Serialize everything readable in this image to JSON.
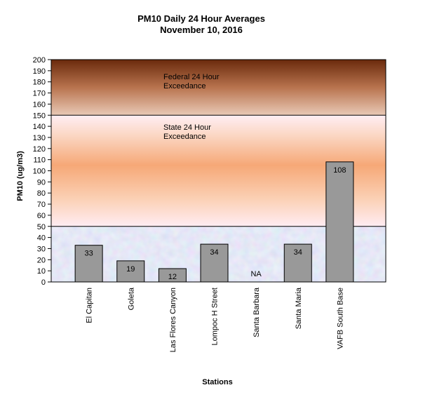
{
  "title_line1": "PM10 Daily 24 Hour Averages",
  "title_line2": "November 10, 2016",
  "bands": {
    "federal_label": "Federal 24 Hour\nExceedance",
    "state_label": "State 24 Hour\nExceedance"
  },
  "colors": {
    "bar_fill": "#999999",
    "federal_top": "#6a2a0c",
    "federal_bottom": "#e6c4b0",
    "state_mid": "#f6a877",
    "state_edge": "#ffe9f1",
    "good_zone": "#c9d1f2"
  },
  "chart_data": {
    "type": "bar",
    "title": "PM10 Daily 24 Hour Averages\nNovember 10, 2016",
    "xlabel": "Stations",
    "ylabel": "PM10 (ug/m3)",
    "ylim": [
      0,
      200
    ],
    "ytick_step": 10,
    "grid": false,
    "categories": [
      "El Capitan",
      "Goleta",
      "Las Flores Canyon",
      "Lompoc H Street",
      "Santa Barbara",
      "Santa Maria",
      "VAFB South Base"
    ],
    "values": [
      33,
      19,
      12,
      34,
      null,
      34,
      108
    ],
    "data_labels": [
      "33",
      "19",
      "12",
      "34",
      "NA",
      "34",
      "108"
    ],
    "thresholds": [
      {
        "name": "State 24 Hour Exceedance",
        "value": 50
      },
      {
        "name": "Federal 24 Hour Exceedance",
        "value": 150
      }
    ]
  }
}
